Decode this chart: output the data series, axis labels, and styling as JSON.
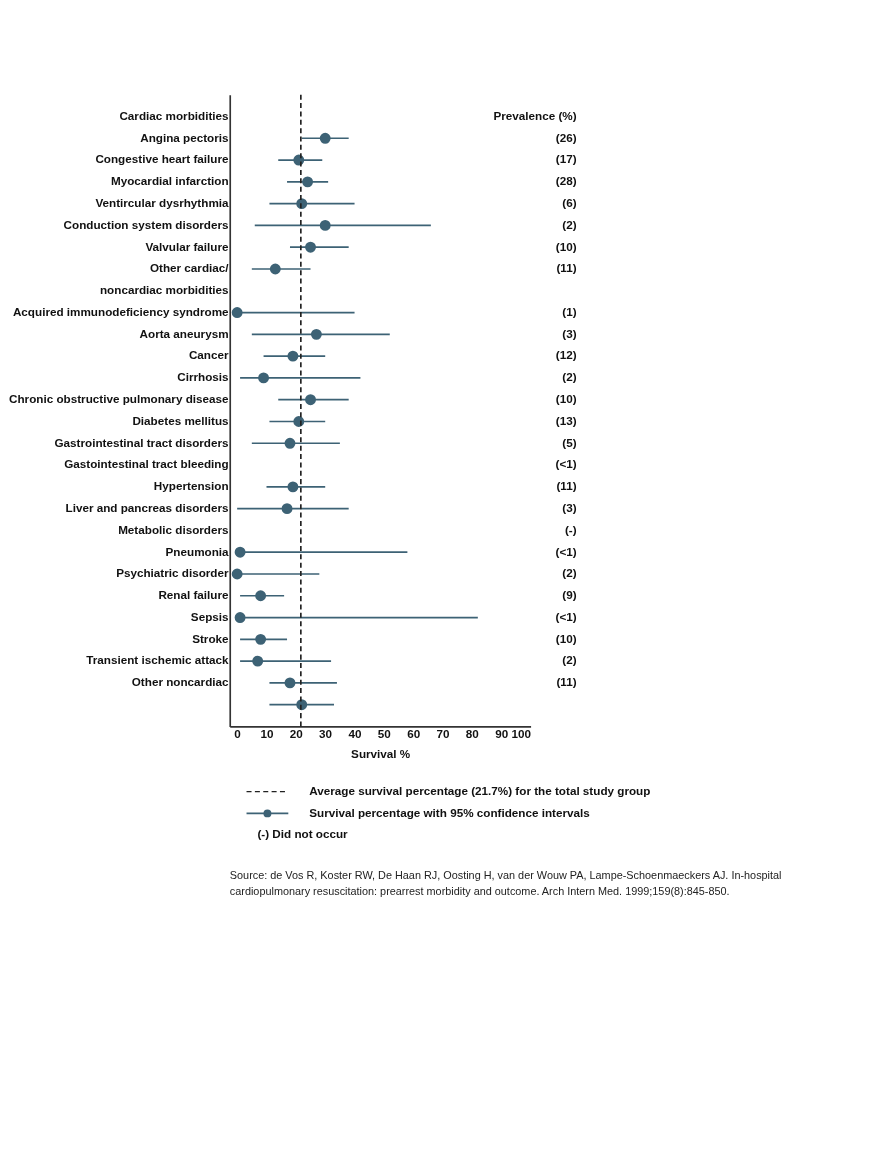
{
  "chart_data": {
    "type": "scatter",
    "xlabel": "Survival %",
    "y2label": "Prevalence (%)",
    "categories": [
      "Cardiac morbidities",
      "Angina pectoris",
      "Congestive heart failure",
      "Myocardial infarction",
      "Ventircular dysrhythmia",
      "Conduction system disorders",
      "Valvular failure",
      "Other cardiac/",
      "noncardiac morbidities",
      "Acquired immunodeficiency syndrome",
      "Aorta aneurysm",
      "Cancer",
      "Cirrhosis",
      "Chronic obstructive pulmonary disease",
      "Diabetes mellitus",
      "Gastrointestinal tract disorders",
      "Gastointestinal tract bleeding",
      "Hypertension",
      "Liver and pancreas disorders",
      "Metabolic disorders",
      "Pneumonia",
      "Psychiatric disorder",
      "Renal failure",
      "Sepsis",
      "Stroke",
      "Transient ischemic attack",
      "Other noncardiac",
      null
    ],
    "y2_categories": [
      null,
      "(26)",
      "(17)",
      "(28)",
      "(6)",
      "(2)",
      "(10)",
      "(11)",
      null,
      "(1)",
      "(3)",
      "(12)",
      "(2)",
      "(10)",
      "(13)",
      "(5)",
      "(<1)",
      "(11)",
      "(3)",
      "(-)",
      "(<1)",
      "(2)",
      "(9)",
      "(<1)",
      "(10)",
      "(2)",
      "(11)",
      null
    ],
    "series": [
      {
        "name": "Survival percentage with 95% confidence intervals",
        "color": "#3d6275",
        "values": [
          null,
          30,
          21,
          24,
          22,
          30,
          25,
          13,
          null,
          0,
          27,
          19,
          9,
          25,
          21,
          18,
          null,
          19,
          17,
          null,
          1,
          0,
          8,
          1,
          8,
          7,
          18,
          22
        ],
        "errors": [
          null,
          [
            22,
            38
          ],
          [
            14,
            29
          ],
          [
            17,
            31
          ],
          [
            11,
            40
          ],
          [
            6,
            66
          ],
          [
            18,
            38
          ],
          [
            5,
            25
          ],
          null,
          [
            0,
            40
          ],
          [
            5,
            52
          ],
          [
            9,
            30
          ],
          [
            1,
            42
          ],
          [
            14,
            38
          ],
          [
            11,
            30
          ],
          [
            5,
            35
          ],
          null,
          [
            10,
            30
          ],
          [
            0,
            38
          ],
          null,
          [
            0,
            58
          ],
          [
            0,
            28
          ],
          [
            1,
            16
          ],
          [
            0,
            82
          ],
          [
            1,
            17
          ],
          [
            1,
            32
          ],
          [
            11,
            34
          ],
          [
            11,
            33
          ]
        ]
      }
    ],
    "xlim": [
      -2.5,
      100
    ],
    "xticks": [
      0,
      10,
      20,
      30,
      40,
      50,
      60,
      70,
      80,
      90,
      100
    ],
    "ref_lines": [
      {
        "axis": "x",
        "value": 21.7,
        "label": "Average survival percentage (21.7%) for the total study group",
        "color": "#222222",
        "line_style": "dashed"
      }
    ],
    "orientation": "horizontal",
    "marker": "circle",
    "grid": false,
    "legend": "bottom",
    "annotations": [
      "(-) Did not occur",
      "Source: de Vos R, Koster RW, De Haan RJ, Oosting H, van der Wouw PA, Lampe-Schoenmaeckers AJ. In-hospital cardiopulmonary resuscitation: prearrest morbidity and outcome. Arch Intern Med. 1999;159(8):845-850."
    ]
  }
}
